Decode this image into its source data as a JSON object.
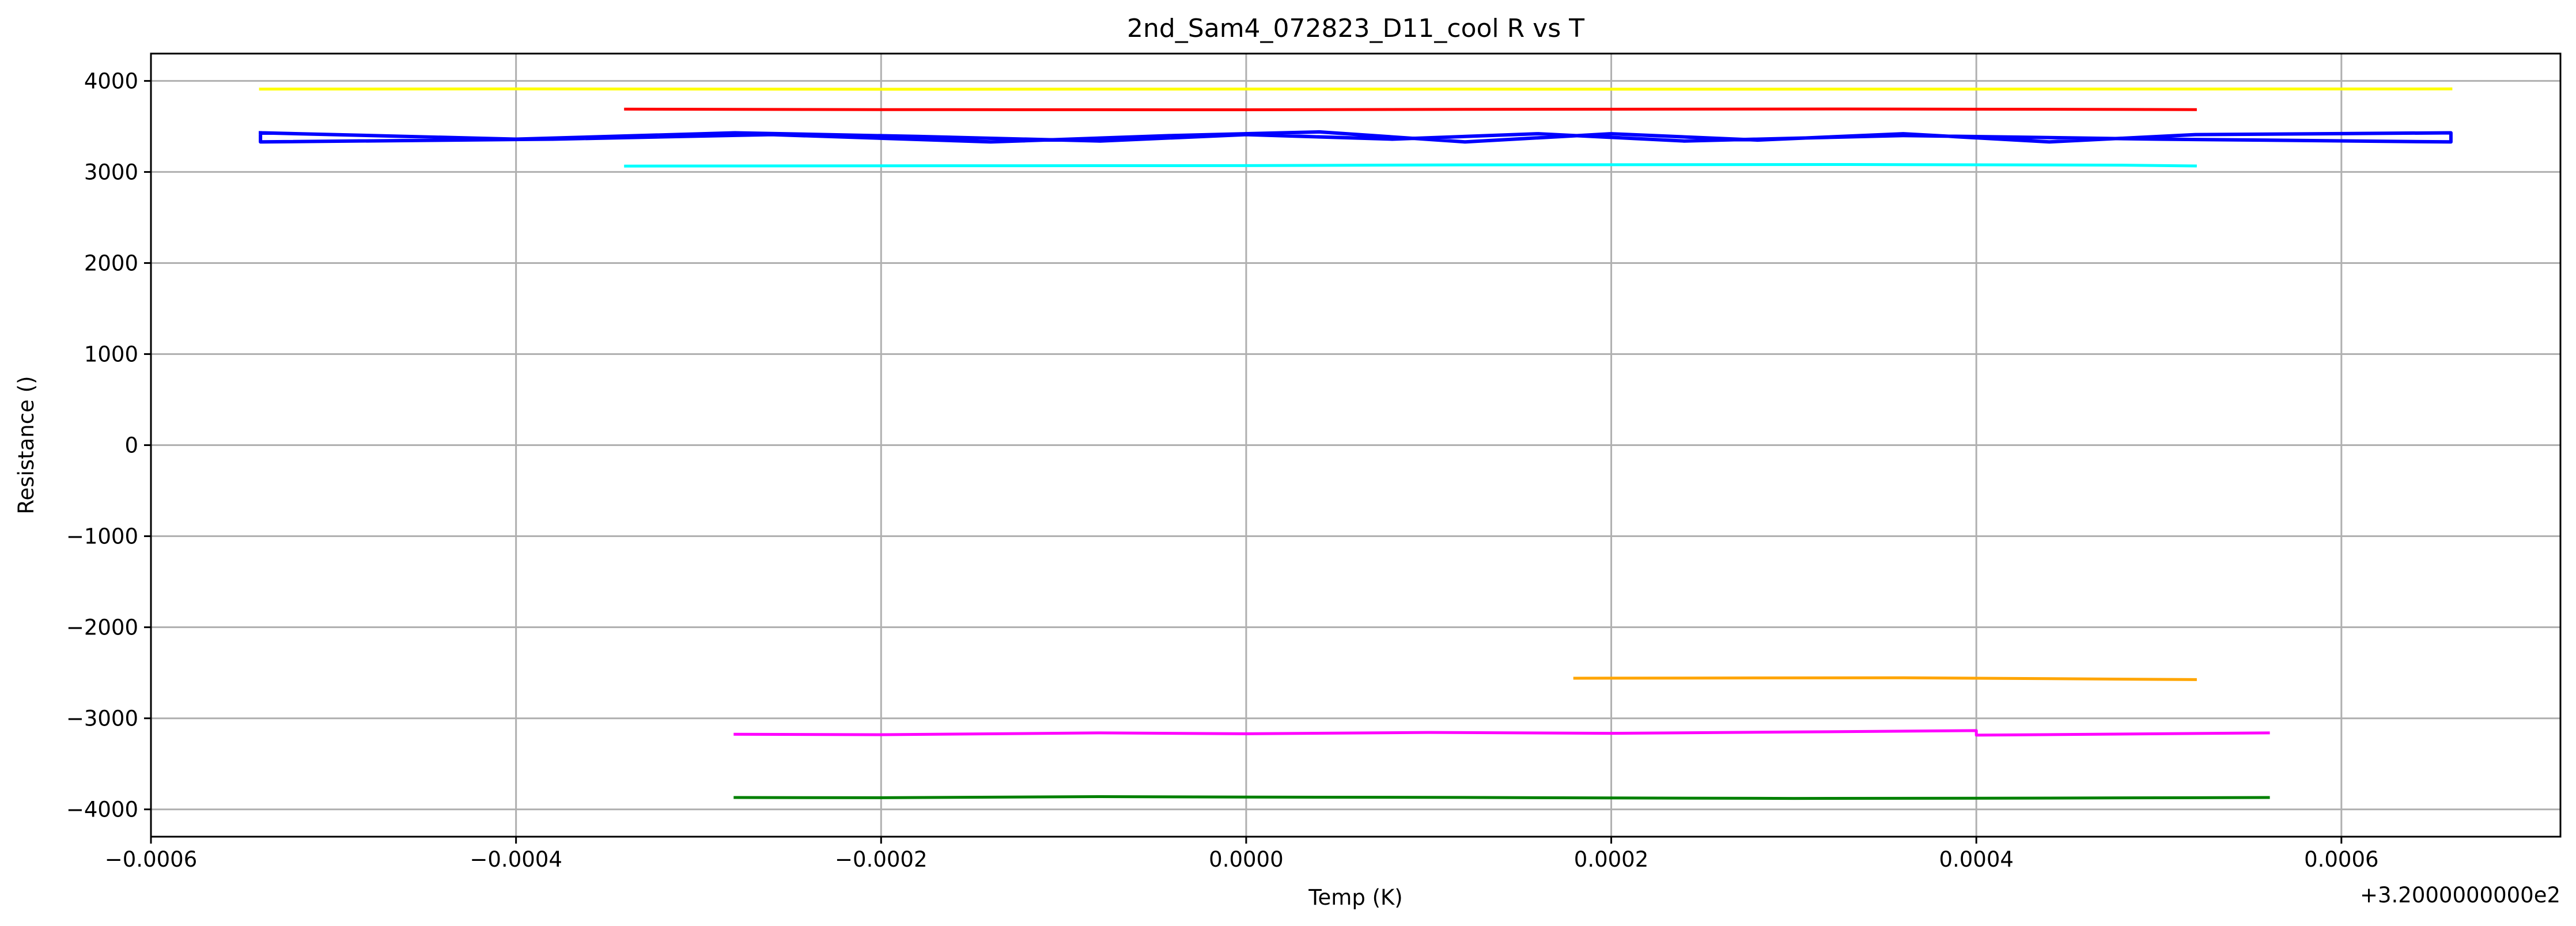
{
  "chart_data": {
    "type": "line",
    "title": "2nd_Sam4_072823_D11_cool R vs T",
    "xlabel": "Temp (K)",
    "ylabel": "Resistance ()",
    "x_offset_label": "+3.2000000000e2",
    "xlim": [
      -0.0006,
      0.00072
    ],
    "ylim": [
      -4300,
      4300
    ],
    "xticks": [
      {
        "value": -0.0006,
        "label": "−0.0006"
      },
      {
        "value": -0.0004,
        "label": "−0.0004"
      },
      {
        "value": -0.0002,
        "label": "−0.0002"
      },
      {
        "value": 0.0,
        "label": "0.0000"
      },
      {
        "value": 0.0002,
        "label": "0.0002"
      },
      {
        "value": 0.0004,
        "label": "0.0004"
      },
      {
        "value": 0.0006,
        "label": "0.0006"
      }
    ],
    "yticks": [
      {
        "value": 4000,
        "label": "4000"
      },
      {
        "value": 3000,
        "label": "3000"
      },
      {
        "value": 2000,
        "label": "2000"
      },
      {
        "value": 1000,
        "label": "1000"
      },
      {
        "value": 0,
        "label": "0"
      },
      {
        "value": -1000,
        "label": "−1000"
      },
      {
        "value": -2000,
        "label": "−2000"
      },
      {
        "value": -3000,
        "label": "−3000"
      },
      {
        "value": -4000,
        "label": "−4000"
      }
    ],
    "grid": true,
    "series": [
      {
        "color": "#ffff00",
        "x": [
          -0.00054,
          -0.0004,
          -0.0002,
          0.0,
          0.0002,
          0.0004,
          0.00066
        ],
        "y": [
          3910,
          3912,
          3908,
          3911,
          3909,
          3910,
          3912
        ]
      },
      {
        "color": "#ff0000",
        "x": [
          -0.00034,
          -0.0002,
          0.0,
          0.00012,
          0.00033,
          0.00048,
          0.00052
        ],
        "y": [
          3690,
          3685,
          3683,
          3688,
          3692,
          3687,
          3684
        ]
      },
      {
        "color": "#00ffff",
        "x": [
          -0.00034,
          -0.0002,
          0.0,
          0.00012,
          0.00033,
          0.00048,
          0.00052
        ],
        "y": [
          3065,
          3068,
          3070,
          3078,
          3082,
          3075,
          3066
        ]
      },
      {
        "color": "#0000ff",
        "x": [
          -0.00054,
          -0.00054,
          -0.00038,
          -0.00026,
          -0.00014,
          -4e-05,
          4e-05,
          0.00012,
          0.0002,
          0.00028,
          0.00036,
          0.00044,
          0.00052,
          0.00066,
          0.00066,
          0.0005,
          0.00036,
          0.00024,
          0.00016,
          8e-05,
          0.0,
          -8e-05,
          -0.00018,
          -0.00028,
          -0.0004,
          -0.00054
        ],
        "y": [
          3430,
          3330,
          3360,
          3410,
          3330,
          3400,
          3440,
          3330,
          3420,
          3350,
          3420,
          3330,
          3410,
          3430,
          3330,
          3360,
          3400,
          3340,
          3420,
          3360,
          3410,
          3340,
          3390,
          3430,
          3360,
          3430
        ]
      },
      {
        "color": "#ffa500",
        "x": [
          0.00018,
          0.00036,
          0.00052
        ],
        "y": [
          -2560,
          -2555,
          -2575
        ]
      },
      {
        "color": "#ff00ff",
        "x": [
          -0.00028,
          -0.0002,
          -8e-05,
          0.0,
          0.0001,
          0.0002,
          0.0003,
          0.0004,
          0.0004,
          0.00056
        ],
        "y": [
          -3175,
          -3180,
          -3160,
          -3170,
          -3155,
          -3165,
          -3150,
          -3135,
          -3185,
          -3160
        ]
      },
      {
        "color": "#008000",
        "x": [
          -0.00028,
          -0.0002,
          -8e-05,
          0.0,
          0.0001,
          0.0002,
          0.0003,
          0.0004,
          0.00056
        ],
        "y": [
          -3870,
          -3872,
          -3860,
          -3865,
          -3868,
          -3875,
          -3880,
          -3878,
          -3870
        ]
      }
    ]
  }
}
